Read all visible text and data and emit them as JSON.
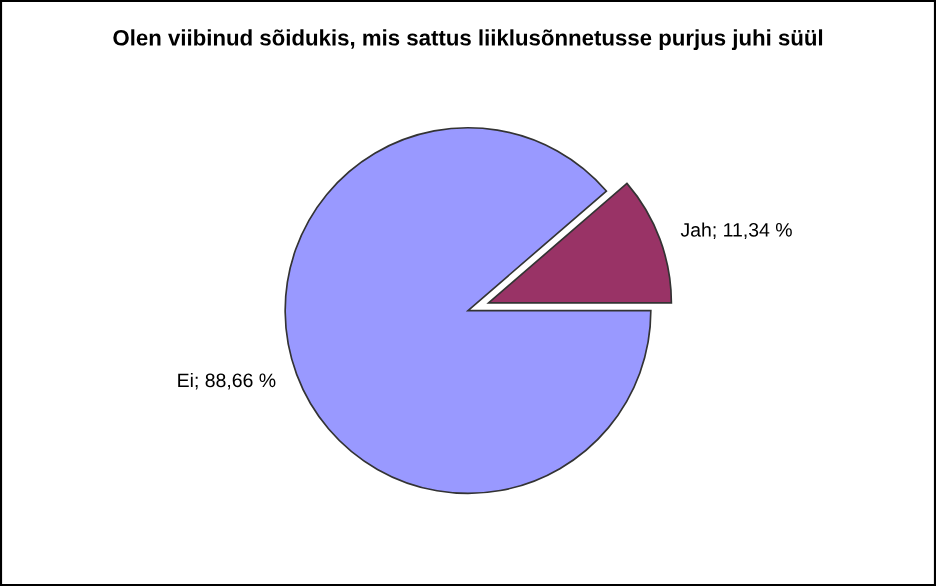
{
  "chart_data": {
    "type": "pie",
    "title": "Olen viibinud sõidukis, mis sattus liiklusõnnetusse purjus juhi süül",
    "categories": [
      "Jah",
      "Ei"
    ],
    "values": [
      11.34,
      88.66
    ],
    "colors": [
      "#993366",
      "#9999ff"
    ],
    "value_labels": [
      "11,34 %",
      "88,66 %"
    ]
  }
}
